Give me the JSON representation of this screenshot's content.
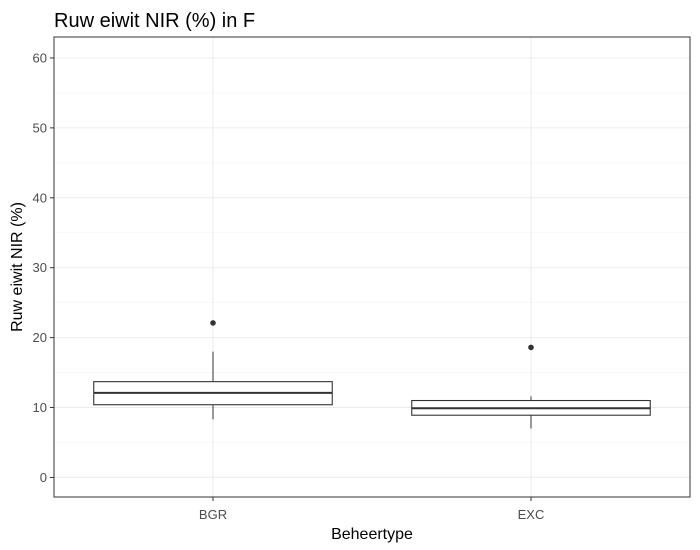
{
  "chart_data": {
    "type": "box",
    "title": "Ruw eiwit NIR (%) in F",
    "xlabel": "Beheertype",
    "ylabel": "Ruw eiwit NIR (%)",
    "ylim": [
      -2.8,
      63
    ],
    "yticks": [
      0,
      10,
      20,
      30,
      40,
      50,
      60
    ],
    "categories": [
      "BGR",
      "EXC"
    ],
    "boxes": [
      {
        "category": "BGR",
        "whisker_low": 8.3,
        "q1": 10.4,
        "median": 12.1,
        "q3": 13.7,
        "whisker_high": 18.0,
        "outliers": [
          22.1
        ]
      },
      {
        "category": "EXC",
        "whisker_low": 7.0,
        "q1": 8.9,
        "median": 9.9,
        "q3": 11.0,
        "whisker_high": 11.6,
        "outliers": [
          18.6
        ]
      }
    ],
    "grid": true,
    "legend": "none"
  }
}
